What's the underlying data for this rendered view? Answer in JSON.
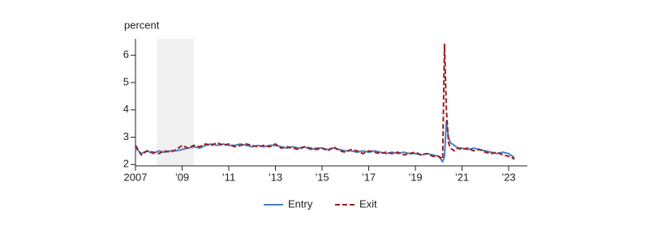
{
  "chart_data": {
    "type": "line",
    "y_axis_label": "percent",
    "x": [
      2007.0,
      2007.25,
      2007.5,
      2007.75,
      2008.0,
      2008.25,
      2008.5,
      2008.75,
      2009.0,
      2009.25,
      2009.5,
      2009.75,
      2010.0,
      2010.25,
      2010.5,
      2010.75,
      2011.0,
      2011.25,
      2011.5,
      2011.75,
      2012.0,
      2012.25,
      2012.5,
      2012.75,
      2013.0,
      2013.25,
      2013.5,
      2013.75,
      2014.0,
      2014.25,
      2014.5,
      2014.75,
      2015.0,
      2015.25,
      2015.5,
      2015.75,
      2016.0,
      2016.25,
      2016.5,
      2016.75,
      2017.0,
      2017.25,
      2017.5,
      2017.75,
      2018.0,
      2018.25,
      2018.5,
      2018.75,
      2019.0,
      2019.25,
      2019.5,
      2019.75,
      2020.0,
      2020.17,
      2020.25,
      2020.33,
      2020.42,
      2020.5,
      2020.67,
      2020.83,
      2021.0,
      2021.25,
      2021.5,
      2021.75,
      2022.0,
      2022.25,
      2022.5,
      2022.75,
      2023.0,
      2023.25
    ],
    "series": [
      {
        "name": "Entry",
        "color": "#4a7fc1",
        "dash": false,
        "values": [
          2.6,
          2.4,
          2.5,
          2.4,
          2.5,
          2.45,
          2.5,
          2.5,
          2.55,
          2.6,
          2.65,
          2.6,
          2.7,
          2.75,
          2.7,
          2.75,
          2.7,
          2.7,
          2.75,
          2.7,
          2.65,
          2.7,
          2.65,
          2.7,
          2.7,
          2.65,
          2.6,
          2.65,
          2.6,
          2.65,
          2.55,
          2.6,
          2.6,
          2.55,
          2.6,
          2.55,
          2.5,
          2.5,
          2.45,
          2.5,
          2.45,
          2.5,
          2.45,
          2.4,
          2.45,
          2.4,
          2.45,
          2.4,
          2.4,
          2.35,
          2.4,
          2.35,
          2.3,
          2.1,
          2.3,
          3.6,
          3.0,
          2.8,
          2.7,
          2.6,
          2.6,
          2.55,
          2.6,
          2.55,
          2.5,
          2.45,
          2.4,
          2.45,
          2.4,
          2.25
        ]
      },
      {
        "name": "Exit",
        "color": "#9b1c1c",
        "dash": true,
        "values": [
          2.7,
          2.35,
          2.5,
          2.45,
          2.4,
          2.5,
          2.45,
          2.55,
          2.7,
          2.6,
          2.7,
          2.65,
          2.75,
          2.7,
          2.8,
          2.7,
          2.75,
          2.65,
          2.7,
          2.75,
          2.7,
          2.65,
          2.7,
          2.65,
          2.75,
          2.6,
          2.65,
          2.6,
          2.55,
          2.65,
          2.6,
          2.55,
          2.6,
          2.5,
          2.65,
          2.5,
          2.45,
          2.55,
          2.5,
          2.4,
          2.5,
          2.45,
          2.4,
          2.45,
          2.4,
          2.45,
          2.35,
          2.4,
          2.45,
          2.35,
          2.4,
          2.3,
          2.3,
          2.2,
          6.4,
          4.0,
          2.8,
          2.6,
          2.5,
          2.6,
          2.55,
          2.6,
          2.5,
          2.55,
          2.45,
          2.4,
          2.45,
          2.35,
          2.3,
          2.2
        ]
      }
    ],
    "recessions": [
      [
        2007.92,
        2009.5
      ]
    ],
    "xlim": [
      2007,
      2023.8
    ],
    "ylim": [
      1.95,
      6.6
    ],
    "xticks": [
      {
        "value": 2007,
        "label": "2007"
      },
      {
        "value": 2009,
        "label": "’09"
      },
      {
        "value": 2011,
        "label": "’11"
      },
      {
        "value": 2013,
        "label": "’13"
      },
      {
        "value": 2015,
        "label": "’15"
      },
      {
        "value": 2017,
        "label": "’17"
      },
      {
        "value": 2019,
        "label": "’19"
      },
      {
        "value": 2021,
        "label": "’21"
      },
      {
        "value": 2023,
        "label": "’23"
      }
    ],
    "yticks": [
      2,
      3,
      4,
      5,
      6
    ],
    "legend": "bottom"
  }
}
